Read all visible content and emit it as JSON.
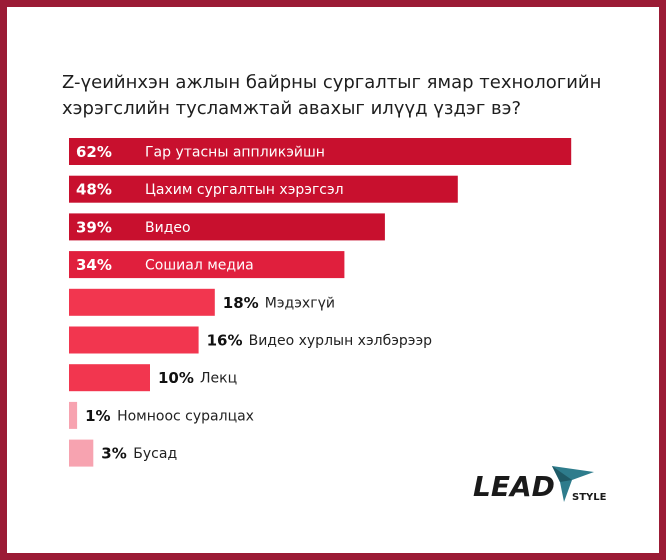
{
  "chart_data": {
    "type": "bar",
    "orientation": "horizontal",
    "title": "Z-үеийнхэн ажлын байрны сургалтыг ямар технологийн хэрэгслийн тусламжтай авахыг илүүд үздэг вэ?",
    "categories": [
      "Гар утасны аппликэйшн",
      "Цахим сургалтын хэрэгсэл",
      "Видео",
      "Сошиал медиа",
      "Мэдэхгүй",
      "Видео хурлын хэлбэрээр",
      "Лекц",
      "Номноос суралцах",
      "Бусад"
    ],
    "values": [
      62,
      48,
      39,
      34,
      18,
      16,
      10,
      1,
      3
    ],
    "value_labels": [
      "62%",
      "48%",
      "39%",
      "34%",
      "18%",
      "16%",
      "10%",
      "1%",
      "3%"
    ],
    "unit": "%",
    "colors": [
      "#c8102e",
      "#c8102e",
      "#c8102e",
      "#e01f3d",
      "#f2364f",
      "#f2364f",
      "#f2364f",
      "#f7a3b0",
      "#f7a3b0"
    ],
    "xlim": [
      0,
      100
    ],
    "grid": false,
    "legend": "none"
  },
  "branding": {
    "logo_main": "LEAD",
    "logo_sub": "STYLE",
    "logo_color": "#1a1a1a",
    "logo_accent": "#2e7c8c"
  },
  "frame_color": "#9b1b35"
}
